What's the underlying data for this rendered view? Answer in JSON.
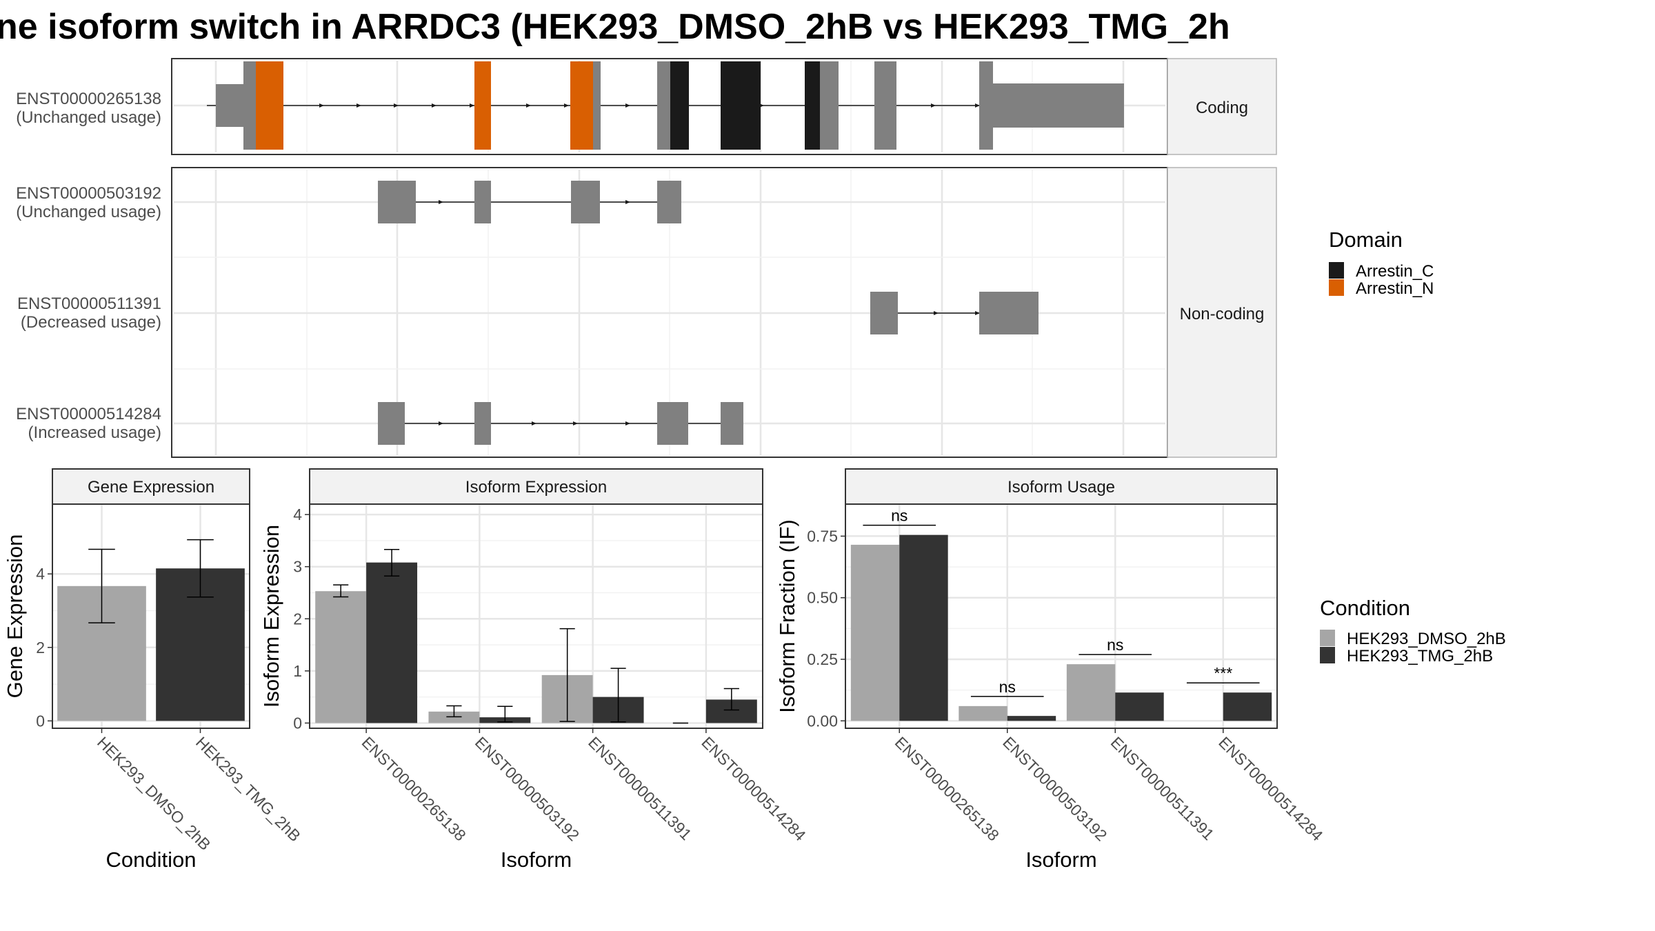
{
  "title": "ne isoform switch in ARRDC3 (HEK293_DMSO_2hB vs HEK293_TMG_2h",
  "colors": {
    "arrestin_c": "#1a1a1a",
    "arrestin_n": "#d95f02",
    "exon": "#808080",
    "dmso": "#a6a6a6",
    "tmg": "#333333",
    "strip": "#f2f2f2",
    "grid": "#ebebeb"
  },
  "structure": {
    "coding_strip": "Coding",
    "noncoding_strip": "Non-coding",
    "transcripts": [
      {
        "id": "ENST00000265138",
        "usage": "(Unchanged usage)",
        "group": "coding"
      },
      {
        "id": "ENST00000503192",
        "usage": "(Unchanged usage)",
        "group": "noncoding"
      },
      {
        "id": "ENST00000511391",
        "usage": "(Decreased usage)",
        "group": "noncoding"
      },
      {
        "id": "ENST00000514284",
        "usage": "(Increased usage)",
        "group": "noncoding"
      }
    ]
  },
  "legend_domain": {
    "title": "Domain",
    "items": [
      {
        "label": "Arrestin_C",
        "color": "#1a1a1a"
      },
      {
        "label": "Arrestin_N",
        "color": "#d95f02"
      }
    ]
  },
  "legend_condition": {
    "title": "Condition",
    "items": [
      {
        "label": "HEK293_DMSO_2hB",
        "color": "#a6a6a6"
      },
      {
        "label": "HEK293_TMG_2hB",
        "color": "#333333"
      }
    ]
  },
  "chart_data": [
    {
      "type": "bar",
      "title": "Gene Expression",
      "xlabel": "Condition",
      "ylabel": "Gene Expression",
      "categories": [
        "HEK293_DMSO_2hB",
        "HEK293_TMG_2hB"
      ],
      "values": [
        3.67,
        4.15
      ],
      "error_low": [
        2.67,
        3.37
      ],
      "error_high": [
        4.67,
        4.93
      ],
      "ylim": [
        -0.2,
        5.9
      ],
      "yticks": [
        0,
        2,
        4
      ],
      "colors": [
        "#a6a6a6",
        "#333333"
      ],
      "grid": true
    },
    {
      "type": "bar",
      "title": "Isoform Expression",
      "xlabel": "Isoform",
      "ylabel": "Isoform Expression",
      "categories": [
        "ENST00000265138",
        "ENST00000503192",
        "ENST00000511391",
        "ENST00000514284"
      ],
      "series": [
        {
          "name": "HEK293_DMSO_2hB",
          "values": [
            2.53,
            0.22,
            0.92,
            0.0
          ],
          "error_low": [
            2.42,
            0.12,
            0.03,
            0.0
          ],
          "error_high": [
            2.65,
            0.33,
            1.81,
            0.0
          ]
        },
        {
          "name": "HEK293_TMG_2hB",
          "values": [
            3.08,
            0.11,
            0.5,
            0.45
          ],
          "error_low": [
            2.82,
            0.02,
            0.02,
            0.25
          ],
          "error_high": [
            3.33,
            0.32,
            1.05,
            0.66
          ]
        }
      ],
      "ylim": [
        -0.1,
        4.2
      ],
      "yticks": [
        0,
        1,
        2,
        3,
        4
      ],
      "grid": true
    },
    {
      "type": "bar",
      "title": "Isoform Usage",
      "xlabel": "Isoform",
      "ylabel": "Isoform Fraction (IF)",
      "categories": [
        "ENST00000265138",
        "ENST00000503192",
        "ENST00000511391",
        "ENST00000514284"
      ],
      "series": [
        {
          "name": "HEK293_DMSO_2hB",
          "values": [
            0.715,
            0.06,
            0.23,
            0.0
          ]
        },
        {
          "name": "HEK293_TMG_2hB",
          "values": [
            0.755,
            0.02,
            0.115,
            0.115
          ]
        }
      ],
      "significance": [
        "ns",
        "ns",
        "ns",
        "***"
      ],
      "ylim": [
        -0.03,
        0.88
      ],
      "yticks": [
        0.0,
        0.25,
        0.5,
        0.75
      ],
      "ytick_labels": [
        "0.00",
        "0.25",
        "0.50",
        "0.75"
      ],
      "grid": true
    }
  ]
}
